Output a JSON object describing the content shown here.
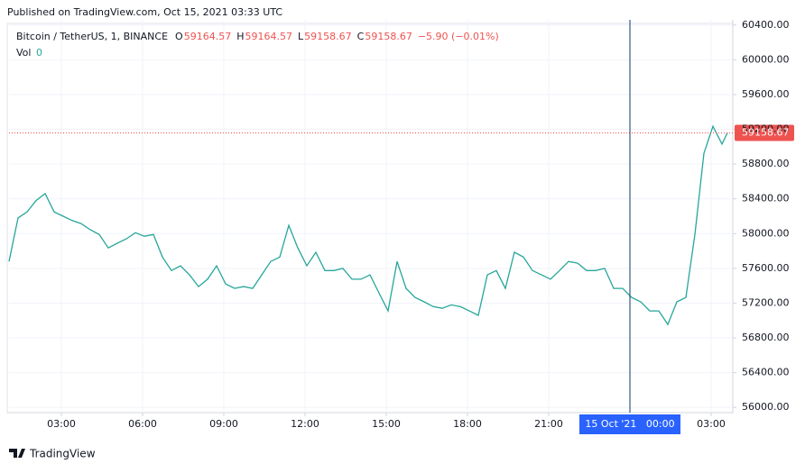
{
  "header": {
    "published": "Published on TradingView.com, Oct 15, 2021 03:33 UTC"
  },
  "footer": {
    "brand": "TradingView"
  },
  "chart_data": {
    "type": "line",
    "symbol": "Bitcoin / TetherUS, 1, BINANCE",
    "ohlc": [
      {
        "key": "O",
        "value": "59164.57"
      },
      {
        "key": "H",
        "value": "59164.57"
      },
      {
        "key": "L",
        "value": "59158.67"
      },
      {
        "key": "C",
        "value": "59158.67"
      }
    ],
    "change": "−5.90 (−0.01%)",
    "volume": {
      "key": "Vol",
      "value": "0"
    },
    "last_price": {
      "value": 59158.67,
      "label": "59158.67",
      "color": "#ef5350"
    },
    "crosshair": {
      "value": 1440,
      "label": "15 Oct '21   00:00",
      "color": "#2962ff"
    },
    "color": "#26a69a",
    "grid": true,
    "x": [
      64,
      84,
      104,
      124,
      144,
      164,
      184,
      204,
      224,
      244,
      264,
      284,
      304,
      324,
      344,
      364,
      384,
      404,
      424,
      444,
      464,
      484,
      504,
      524,
      544,
      564,
      584,
      604,
      624,
      644,
      664,
      684,
      704,
      724,
      744,
      764,
      784,
      804,
      824,
      844,
      864,
      884,
      904,
      924,
      944,
      964,
      984,
      1004,
      1024,
      1044,
      1064,
      1084,
      1104,
      1124,
      1144,
      1164,
      1184,
      1204,
      1224,
      1244,
      1264,
      1284,
      1304,
      1324,
      1344,
      1364,
      1384,
      1404,
      1424,
      1444,
      1464,
      1484,
      1504,
      1524,
      1544,
      1564,
      1584,
      1604,
      1624,
      1644,
      1656
    ],
    "values": [
      57680,
      58180,
      58250,
      58380,
      58460,
      58250,
      58200,
      58150,
      58115,
      58045,
      57990,
      57835,
      57890,
      57940,
      58010,
      57970,
      57990,
      57730,
      57575,
      57630,
      57525,
      57390,
      57475,
      57630,
      57420,
      57370,
      57390,
      57370,
      57525,
      57680,
      57730,
      58095,
      57835,
      57630,
      57785,
      57575,
      57575,
      57600,
      57475,
      57475,
      57525,
      57315,
      57110,
      57680,
      57370,
      57265,
      57215,
      57160,
      57140,
      57180,
      57160,
      57110,
      57060,
      57525,
      57575,
      57370,
      57785,
      57730,
      57575,
      57525,
      57475,
      57575,
      57680,
      57660,
      57575,
      57575,
      57600,
      57370,
      57370,
      57265,
      57215,
      57110,
      57110,
      56955,
      57215,
      57265,
      57990,
      58925,
      59235,
      59030,
      59158.67
    ],
    "xlim": [
      64,
      1668
    ],
    "xticks": [
      {
        "value": 180,
        "label": "03:00"
      },
      {
        "value": 360,
        "label": "06:00"
      },
      {
        "value": 540,
        "label": "09:00"
      },
      {
        "value": 720,
        "label": "12:00"
      },
      {
        "value": 900,
        "label": "15:00"
      },
      {
        "value": 1080,
        "label": "18:00"
      },
      {
        "value": 1260,
        "label": "21:00"
      },
      {
        "value": 1620,
        "label": "03:00"
      }
    ],
    "ylim": [
      55940,
      60460
    ],
    "yticks": [
      {
        "value": 56000,
        "label": "56000.00"
      },
      {
        "value": 56400,
        "label": "56400.00"
      },
      {
        "value": 56800,
        "label": "56800.00"
      },
      {
        "value": 57200,
        "label": "57200.00"
      },
      {
        "value": 57600,
        "label": "57600.00"
      },
      {
        "value": 58000,
        "label": "58000.00"
      },
      {
        "value": 58400,
        "label": "58400.00"
      },
      {
        "value": 58800,
        "label": "58800.00"
      },
      {
        "value": 59200,
        "label": "59200.00"
      },
      {
        "value": 59600,
        "label": "59600.00"
      },
      {
        "value": 60000,
        "label": "60000.00"
      },
      {
        "value": 60400,
        "label": "60400.00"
      }
    ]
  }
}
